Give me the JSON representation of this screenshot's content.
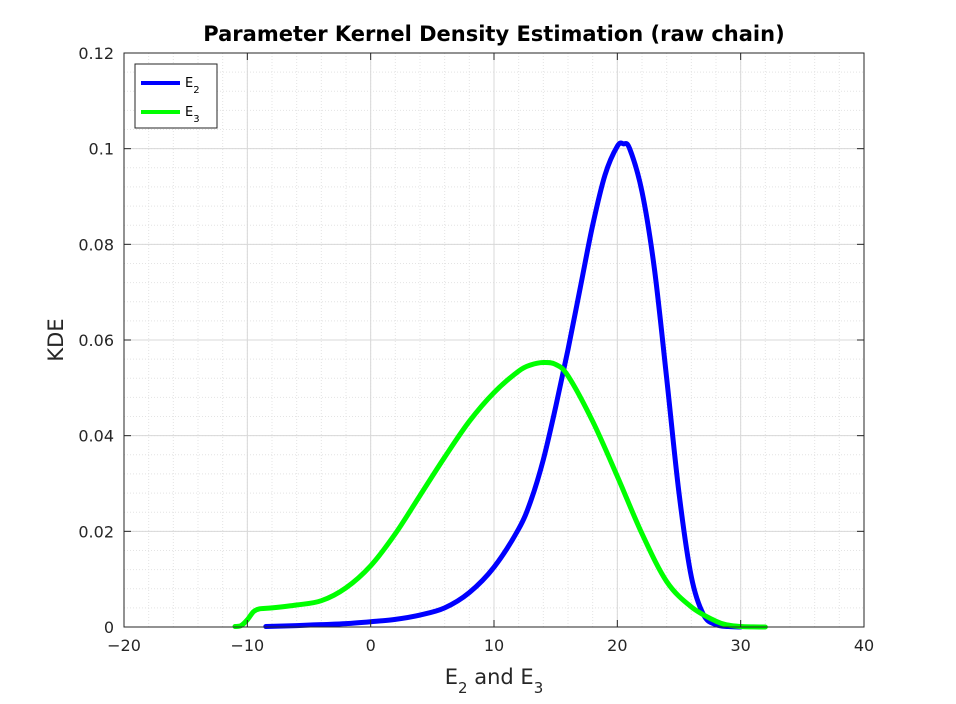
{
  "chart_data": {
    "type": "line",
    "title": "Parameter Kernel Density Estimation (raw chain)",
    "xlabel": {
      "base1": "E",
      "sub1": "2",
      "mid": " and E",
      "sub2": "3"
    },
    "ylabel": "KDE",
    "xlim": [
      -20,
      40
    ],
    "ylim": [
      0,
      0.12
    ],
    "xticks": [
      -20,
      -10,
      0,
      10,
      20,
      30,
      40
    ],
    "xtick_labels": [
      "−20",
      "−10",
      "0",
      "10",
      "20",
      "30",
      "40"
    ],
    "yticks": [
      0,
      0.02,
      0.04,
      0.06,
      0.08,
      0.1,
      0.12
    ],
    "ytick_labels": [
      "0",
      "0.02",
      "0.04",
      "0.06",
      "0.08",
      "0.1",
      "0.12"
    ],
    "grid": true,
    "minor_grid": true,
    "legend_position": "top-left",
    "series": [
      {
        "name": "E2",
        "label_base": "E",
        "label_sub": "2",
        "color": "#0000ff",
        "x": [
          -8.5,
          -6,
          -4,
          -2,
          0,
          2,
          4,
          6,
          8,
          10,
          12,
          13,
          14,
          15,
          16,
          17,
          18,
          19,
          20,
          20.5,
          21,
          22,
          23,
          24,
          25,
          26,
          27,
          28,
          29,
          30
        ],
        "y": [
          0.0001,
          0.0003,
          0.0005,
          0.0007,
          0.0011,
          0.0016,
          0.0025,
          0.004,
          0.0072,
          0.0125,
          0.0205,
          0.0265,
          0.035,
          0.046,
          0.058,
          0.071,
          0.084,
          0.0945,
          0.1005,
          0.101,
          0.1,
          0.091,
          0.075,
          0.052,
          0.028,
          0.0105,
          0.0025,
          0.0005,
          0.0001,
          0.0
        ]
      },
      {
        "name": "E3",
        "label_base": "E",
        "label_sub": "3",
        "color": "#00ff00",
        "x": [
          -11,
          -10.5,
          -10,
          -9.5,
          -9,
          -8,
          -6,
          -4,
          -2,
          0,
          2,
          4,
          6,
          8,
          10,
          12,
          13,
          14,
          15,
          16,
          18,
          20,
          22,
          24,
          26,
          28,
          29,
          30,
          31,
          32
        ],
        "y": [
          0.0001,
          0.0003,
          0.0015,
          0.0032,
          0.0038,
          0.004,
          0.0046,
          0.0055,
          0.0082,
          0.0128,
          0.0195,
          0.0275,
          0.0355,
          0.043,
          0.049,
          0.0535,
          0.0548,
          0.0553,
          0.0549,
          0.0525,
          0.043,
          0.0315,
          0.0195,
          0.0095,
          0.0042,
          0.0012,
          0.0004,
          0.0001,
          2e-05,
          0.0
        ]
      }
    ]
  }
}
